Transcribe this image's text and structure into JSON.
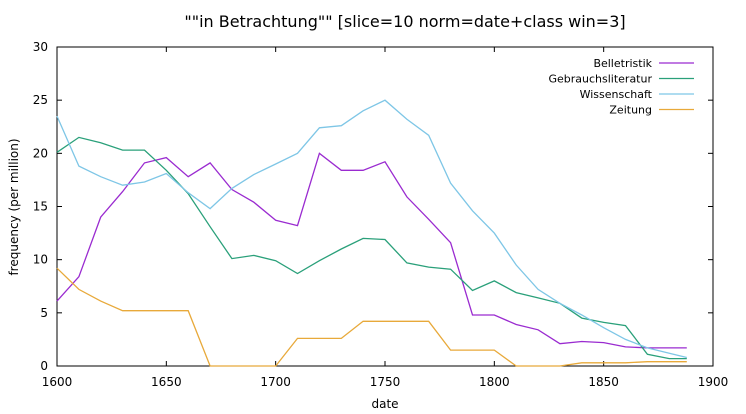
{
  "chart_data": {
    "type": "line",
    "title": "\"\"in Betrachtung\"\" [slice=10 norm=date+class win=3]",
    "xlabel": "date",
    "ylabel": "frequency (per million)",
    "xlim": [
      1600,
      1900
    ],
    "ylim": [
      0,
      30
    ],
    "xticks": [
      1600,
      1650,
      1700,
      1750,
      1800,
      1850,
      1900
    ],
    "yticks": [
      0,
      5,
      10,
      15,
      20,
      25,
      30
    ],
    "grid": false,
    "legend_position": "top-right",
    "series": [
      {
        "name": "Belletristik",
        "color": "#9a2bd0",
        "x": [
          1600,
          1610,
          1620,
          1630,
          1640,
          1650,
          1660,
          1670,
          1680,
          1690,
          1700,
          1710,
          1720,
          1730,
          1740,
          1750,
          1760,
          1770,
          1780,
          1790,
          1800,
          1810,
          1820,
          1830,
          1840,
          1850,
          1860,
          1870,
          1880,
          1888
        ],
        "values": [
          6.1,
          8.4,
          14.0,
          16.4,
          19.1,
          19.6,
          17.8,
          19.1,
          16.6,
          15.4,
          13.7,
          13.2,
          20.0,
          18.4,
          18.4,
          19.2,
          15.9,
          13.8,
          11.6,
          4.8,
          4.8,
          3.9,
          3.4,
          2.1,
          2.3,
          2.2,
          1.8,
          1.7,
          1.7,
          1.7
        ]
      },
      {
        "name": "Gebrauchsliteratur",
        "color": "#2aa07a",
        "x": [
          1600,
          1610,
          1620,
          1630,
          1640,
          1650,
          1660,
          1670,
          1680,
          1690,
          1700,
          1710,
          1720,
          1730,
          1740,
          1750,
          1760,
          1770,
          1780,
          1790,
          1800,
          1810,
          1820,
          1830,
          1840,
          1850,
          1860,
          1870,
          1880,
          1888
        ],
        "values": [
          20.1,
          21.5,
          21.0,
          20.3,
          20.3,
          18.4,
          16.2,
          13.1,
          10.1,
          10.4,
          9.9,
          8.7,
          9.9,
          11.0,
          12.0,
          11.9,
          9.7,
          9.3,
          9.1,
          7.1,
          8.0,
          6.9,
          6.4,
          5.9,
          4.5,
          4.1,
          3.8,
          1.1,
          0.7,
          0.7
        ]
      },
      {
        "name": "Wissenschaft",
        "color": "#7ec6e6",
        "x": [
          1600,
          1610,
          1620,
          1630,
          1640,
          1650,
          1660,
          1670,
          1680,
          1690,
          1700,
          1710,
          1720,
          1730,
          1740,
          1750,
          1760,
          1770,
          1780,
          1790,
          1800,
          1810,
          1820,
          1830,
          1840,
          1850,
          1860,
          1870,
          1880,
          1888
        ],
        "values": [
          23.5,
          18.8,
          17.8,
          17.0,
          17.3,
          18.1,
          16.3,
          14.8,
          16.7,
          18.0,
          19.0,
          20.0,
          22.4,
          22.6,
          24.0,
          25.0,
          23.2,
          21.7,
          17.2,
          14.6,
          12.5,
          9.5,
          7.2,
          5.9,
          4.8,
          3.6,
          2.5,
          1.7,
          1.2,
          0.8
        ]
      },
      {
        "name": "Zeitung",
        "color": "#e8a93a",
        "x": [
          1600,
          1610,
          1620,
          1630,
          1640,
          1650,
          1660,
          1670,
          1680,
          1690,
          1700,
          1710,
          1720,
          1730,
          1740,
          1750,
          1760,
          1770,
          1780,
          1790,
          1800,
          1810,
          1820,
          1830,
          1840,
          1850,
          1860,
          1870,
          1880,
          1888
        ],
        "values": [
          9.2,
          7.2,
          6.1,
          5.2,
          5.2,
          5.2,
          5.2,
          0.0,
          0.0,
          0.0,
          0.0,
          2.6,
          2.6,
          2.6,
          4.2,
          4.2,
          4.2,
          4.2,
          1.5,
          1.5,
          1.5,
          0.0,
          0.0,
          0.0,
          0.3,
          0.3,
          0.3,
          0.4,
          0.4,
          0.4
        ]
      }
    ]
  }
}
